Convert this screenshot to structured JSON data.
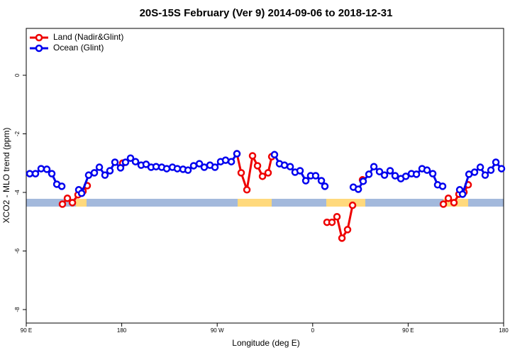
{
  "chart_data": {
    "type": "line",
    "title": "20S-15S February (Ver 9)   2014-09-06 to 2018-12-31",
    "xlabel": "Longitude (deg E)",
    "ylabel": "XCO2 - MLO trend (ppm)",
    "xlim": [
      90,
      540
    ],
    "xticks": [
      {
        "value": 90,
        "label": "90 E"
      },
      180,
      {
        "value": 270,
        "label": "90 W"
      },
      {
        "value": 360,
        "label": "0"
      },
      {
        "value": 450,
        "label": "90 E"
      },
      {
        "value": 540,
        "label": "180"
      }
    ],
    "ylim": [
      -8.46,
      1.6
    ],
    "yticks": [
      0,
      -2,
      -4,
      -6,
      -8
    ],
    "legend": "top-left",
    "series": [
      {
        "name": "Land (Nadir&Glint)",
        "color": "#ee0000",
        "x": [
          124.1,
          128.8,
          133.5,
          138.8,
          143.5,
          147.5,
          160,
          180.9,
          200,
          288.6,
          292.6,
          298.0,
          303.3,
          308.0,
          312.7,
          318.0,
          321.4,
          350,
          373.5,
          378.2,
          382.9,
          387.6,
          392.9,
          397.6,
          402,
          407.0,
          450,
          483.2,
          487.9,
          493.2,
          497.9,
          502.6,
          506.6
        ],
        "values": [
          -4.4,
          -4.2,
          -4.35,
          -4.08,
          -3.96,
          -3.77,
          null,
          -3.0,
          null,
          -2.68,
          -3.33,
          -3.91,
          -2.75,
          -3.09,
          -3.45,
          -3.33,
          -2.78,
          null,
          -5.02,
          -5.02,
          -4.83,
          -5.56,
          -5.27,
          -4.44,
          null,
          -3.57,
          null,
          -4.4,
          -4.2,
          -4.35,
          -4.06,
          -3.99,
          -3.74
        ]
      },
      {
        "name": "Ocean (Glint)",
        "color": "#0000ee",
        "x": [
          93.3,
          98.7,
          104.0,
          109.4,
          114.1,
          118.8,
          123.5,
          130,
          139.5,
          142.2,
          148.8,
          154.2,
          158.9,
          164.2,
          168.9,
          173.6,
          178.9,
          183.6,
          188.3,
          193.0,
          198.3,
          203.0,
          207.7,
          212.4,
          217.7,
          222.4,
          227.8,
          232.4,
          237.8,
          242.5,
          247.8,
          253.2,
          257.8,
          263.2,
          267.9,
          273.2,
          277.9,
          283.3,
          288.6,
          300,
          324.0,
          328.7,
          333.4,
          338.8,
          343.4,
          348.1,
          353.5,
          358.1,
          362.8,
          368.2,
          371.5,
          380,
          398.3,
          403.0,
          407.6,
          413.0,
          417.7,
          423.0,
          427.7,
          433.0,
          437.7,
          443.1,
          447.8,
          453.1,
          457.8,
          463.1,
          467.8,
          473.2,
          477.8,
          482.5,
          490,
          498.6,
          501.3,
          507.3,
          512.6,
          518.0,
          522.6,
          528.0,
          532.7,
          538.0
        ],
        "values": [
          -3.36,
          -3.36,
          -3.19,
          -3.21,
          -3.36,
          -3.72,
          -3.79,
          null,
          -3.91,
          -4.03,
          -3.41,
          -3.33,
          -3.14,
          -3.41,
          -3.26,
          -2.97,
          -3.16,
          -2.97,
          -2.83,
          -2.95,
          -3.07,
          -3.04,
          -3.14,
          -3.12,
          -3.14,
          -3.19,
          -3.14,
          -3.19,
          -3.21,
          -3.24,
          -3.09,
          -3.02,
          -3.14,
          -3.07,
          -3.14,
          -2.95,
          -2.9,
          -2.95,
          -2.68,
          null,
          -2.71,
          -3.02,
          -3.07,
          -3.12,
          -3.31,
          -3.26,
          -3.6,
          -3.43,
          -3.43,
          -3.6,
          -3.79,
          null,
          -3.82,
          -3.89,
          -3.62,
          -3.38,
          -3.12,
          -3.29,
          -3.41,
          -3.26,
          -3.43,
          -3.53,
          -3.45,
          -3.36,
          -3.38,
          -3.19,
          -3.24,
          -3.36,
          -3.74,
          -3.79,
          null,
          -3.91,
          -4.06,
          -3.38,
          -3.31,
          -3.14,
          -3.41,
          -3.24,
          -2.97,
          -3.19
        ]
      }
    ]
  }
}
